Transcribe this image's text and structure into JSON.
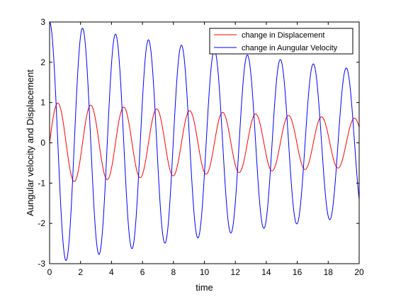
{
  "chart_data": {
    "type": "line",
    "title": "",
    "xlabel": "time",
    "ylabel": "Aungular velocity and Displacement",
    "xlim": [
      0,
      20
    ],
    "ylim": [
      -3,
      3
    ],
    "xticks": [
      "0",
      "2",
      "4",
      "6",
      "8",
      "10",
      "12",
      "14",
      "16",
      "18",
      "20"
    ],
    "yticks": [
      "-3",
      "-2",
      "-1",
      "0",
      "1",
      "2",
      "3"
    ],
    "grid": false,
    "legend_position": "top-right",
    "series": [
      {
        "name": "change in Displacement",
        "color": "#ff0000",
        "model": "damped-sine",
        "amplitude": 1.0,
        "damping": 0.025,
        "angular_frequency": 2.95,
        "phase_shift": 0,
        "peaks": [
          [
            0.55,
            0.98
          ],
          [
            2.7,
            0.93
          ],
          [
            4.8,
            0.88
          ],
          [
            6.95,
            0.83
          ],
          [
            9.05,
            0.79
          ],
          [
            11.2,
            0.75
          ],
          [
            13.35,
            0.71
          ],
          [
            15.45,
            0.67
          ],
          [
            17.6,
            0.63
          ],
          [
            19.7,
            0.6
          ]
        ],
        "troughs": [
          [
            1.65,
            -0.96
          ],
          [
            3.75,
            -0.91
          ],
          [
            5.9,
            -0.86
          ],
          [
            8.0,
            -0.82
          ],
          [
            10.15,
            -0.77
          ],
          [
            12.3,
            -0.73
          ],
          [
            14.4,
            -0.69
          ],
          [
            16.55,
            -0.65
          ],
          [
            18.65,
            -0.62
          ]
        ]
      },
      {
        "name": "change in Aungular Velocity",
        "color": "#0000ff",
        "model": "damped-cosine",
        "amplitude": 3.0,
        "damping": 0.025,
        "angular_frequency": 2.95,
        "phase_shift": 0,
        "peaks": [
          [
            0.0,
            3.0
          ],
          [
            2.1,
            2.85
          ],
          [
            4.2,
            2.7
          ],
          [
            6.35,
            2.56
          ],
          [
            8.5,
            2.43
          ],
          [
            10.6,
            2.31
          ],
          [
            12.75,
            2.19
          ],
          [
            14.85,
            2.08
          ],
          [
            17.0,
            1.97
          ],
          [
            19.1,
            1.87
          ]
        ],
        "troughs": [
          [
            1.05,
            -2.92
          ],
          [
            3.2,
            -2.77
          ],
          [
            5.3,
            -2.63
          ],
          [
            7.45,
            -2.5
          ],
          [
            9.55,
            -2.37
          ],
          [
            11.7,
            -2.25
          ],
          [
            13.8,
            -2.13
          ],
          [
            15.95,
            -2.02
          ],
          [
            18.05,
            -1.92
          ]
        ]
      }
    ]
  }
}
